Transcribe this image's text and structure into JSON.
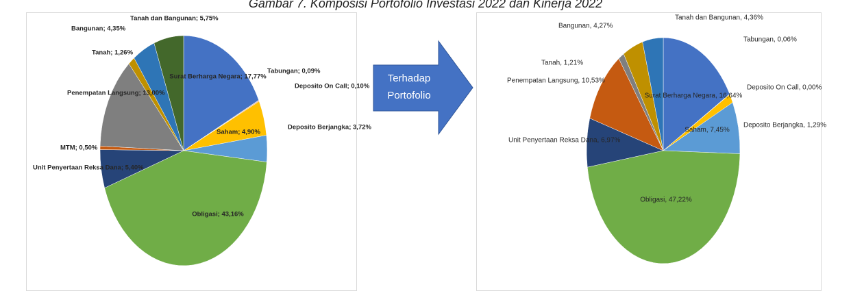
{
  "title": "Gambar 7. Komposisi Portofolio Investasi 2022 dan Kinerja 2022",
  "arrow_label": [
    "Terhadap",
    "Portofolio"
  ],
  "chart_data": [
    {
      "type": "pie",
      "values": [
        17.77,
        0.09,
        0.1,
        4.9,
        3.72,
        43.16,
        5.4,
        0.5,
        13.0,
        1.26,
        4.35,
        5.75
      ],
      "value_labels": [
        "Surat Berharga Negara; 17,77%",
        "Tabungan; 0,09%",
        "Deposito On Call; 0,10%",
        "Saham; 4,90%",
        "Deposito Berjangka; 3,72%",
        "Obligasi; 43,16%",
        "Unit Penyertaan Reksa Dana; 5,40%",
        "MTM; 0,50%",
        "Penempatan Langsung; 13,00%",
        "Tanah; 1,26%",
        "Bangunan; 4,35%",
        "Tanah dan Bangunan; 5,75%"
      ],
      "colors": [
        "#4472c4",
        "#a5a5a5",
        "#ed7d31",
        "#ffc000",
        "#5b9bd5",
        "#70ad47",
        "#264478",
        "#c55a11",
        "#7f7f7f",
        "#bf9000",
        "#2e75b6",
        "#43682b"
      ]
    },
    {
      "type": "pie",
      "values": [
        16.64,
        0.06,
        0.0,
        1.29,
        7.45,
        47.22,
        6.97,
        10.53,
        1.21,
        4.27,
        4.36
      ],
      "value_labels": [
        "Surat Berharga Negara, 16,64%",
        "Tabungan, 0,06%",
        "Deposito On Call, 0,00%",
        "Deposito Berjangka, 1,29%",
        "Saham, 7,45%",
        "Obligasi, 47,22%",
        "Unit Penyertaan Reksa Dana, 6,97%",
        "Penempatan Langsung, 10,53%",
        "Tanah, 1,21%",
        "Bangunan, 4,27%",
        "Tanah dan Bangunan, 4,36%"
      ],
      "colors": [
        "#4472c4",
        "#a5a5a5",
        "#ed7d31",
        "#ffc000",
        "#5b9bd5",
        "#70ad47",
        "#264478",
        "#c55a11",
        "#7f7f7f",
        "#bf9000",
        "#2e75b6"
      ]
    }
  ]
}
